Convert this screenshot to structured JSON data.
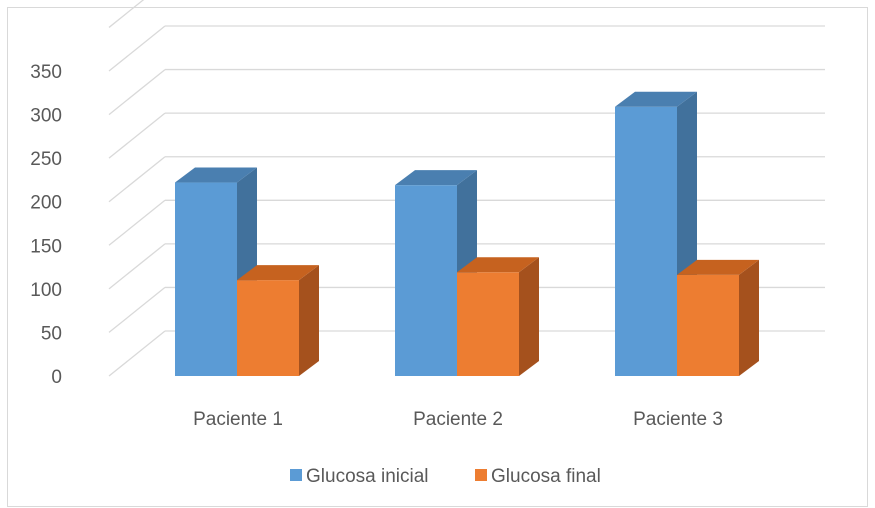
{
  "chart_data": {
    "type": "bar",
    "title": "",
    "xlabel": "",
    "ylabel": "",
    "categories": [
      "Paciente 1",
      "Paciente 2",
      "Paciente 3"
    ],
    "series": [
      {
        "name": "Glucosa inicial",
        "values": [
          222,
          219,
          309
        ],
        "color": "#5b9bd5",
        "side_color": "#41719c",
        "top_color": "#4a7fb0"
      },
      {
        "name": "Glucosa final",
        "values": [
          110,
          119,
          116
        ],
        "color": "#ed7d31",
        "side_color": "#a5511d",
        "top_color": "#c6621f"
      }
    ],
    "ylim": [
      0,
      350
    ],
    "yticks": [
      "0",
      "50",
      "100",
      "150",
      "200",
      "250",
      "300",
      "350"
    ],
    "grid": true,
    "legend_position": "bottom",
    "style": "3d-column"
  }
}
